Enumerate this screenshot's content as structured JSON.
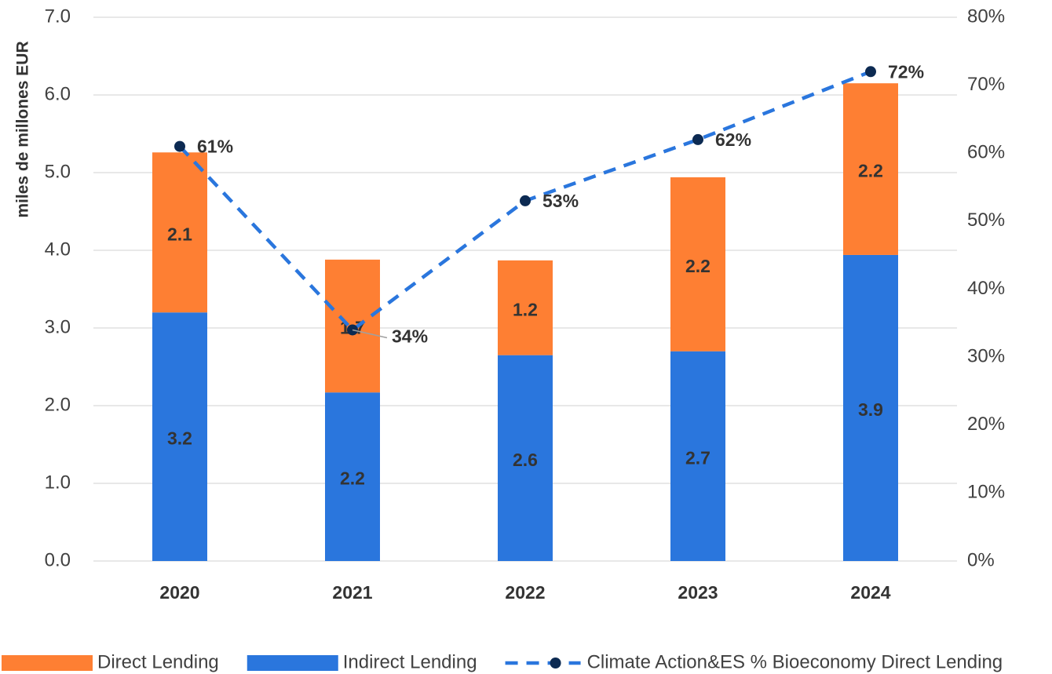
{
  "chart_data": {
    "type": "bar-line",
    "y_axis_label": "miles de millones EUR",
    "categories": [
      "2020",
      "2021",
      "2022",
      "2023",
      "2024"
    ],
    "series": [
      {
        "name": "Direct Lending",
        "type": "bar",
        "color": "#fe7f33",
        "values": [
          2.06,
          1.71,
          1.22,
          2.24,
          2.21
        ],
        "value_labels": [
          "2.1",
          "1.7",
          "1.2",
          "2.2",
          "2.2"
        ]
      },
      {
        "name": "Indirect Lending",
        "type": "bar",
        "color": "#2a76dd",
        "values": [
          3.2,
          2.17,
          2.65,
          2.7,
          3.94
        ],
        "value_labels": [
          "3.2",
          "2.2",
          "2.6",
          "2.7",
          "3.9"
        ]
      },
      {
        "name": "Climate Action&ES % Bioeconomy Direct Lending",
        "type": "line",
        "axis": "y2",
        "color": "#2a76dd",
        "marker_color": "#0c2a52",
        "values": [
          61,
          34,
          53,
          62,
          72
        ],
        "value_labels": [
          "61%",
          "34%",
          "53%",
          "62%",
          "72%"
        ]
      }
    ],
    "ylim": [
      0,
      7
    ],
    "yticks": [
      {
        "value": 0,
        "label": "0.0"
      },
      {
        "value": 1,
        "label": "1.0"
      },
      {
        "value": 2,
        "label": "2.0"
      },
      {
        "value": 3,
        "label": "3.0"
      },
      {
        "value": 4,
        "label": "4.0"
      },
      {
        "value": 5,
        "label": "5.0"
      },
      {
        "value": 6,
        "label": "6.0"
      },
      {
        "value": 7,
        "label": "7.0"
      }
    ],
    "y2lim": [
      0,
      80
    ],
    "y2ticks": [
      {
        "value": 0,
        "label": "0%"
      },
      {
        "value": 10,
        "label": "10%"
      },
      {
        "value": 20,
        "label": "20%"
      },
      {
        "value": 30,
        "label": "30%"
      },
      {
        "value": 40,
        "label": "40%"
      },
      {
        "value": 50,
        "label": "50%"
      },
      {
        "value": 60,
        "label": "60%"
      },
      {
        "value": 70,
        "label": "70%"
      },
      {
        "value": 80,
        "label": "80%"
      }
    ],
    "grid": true,
    "legend": "bottom"
  }
}
